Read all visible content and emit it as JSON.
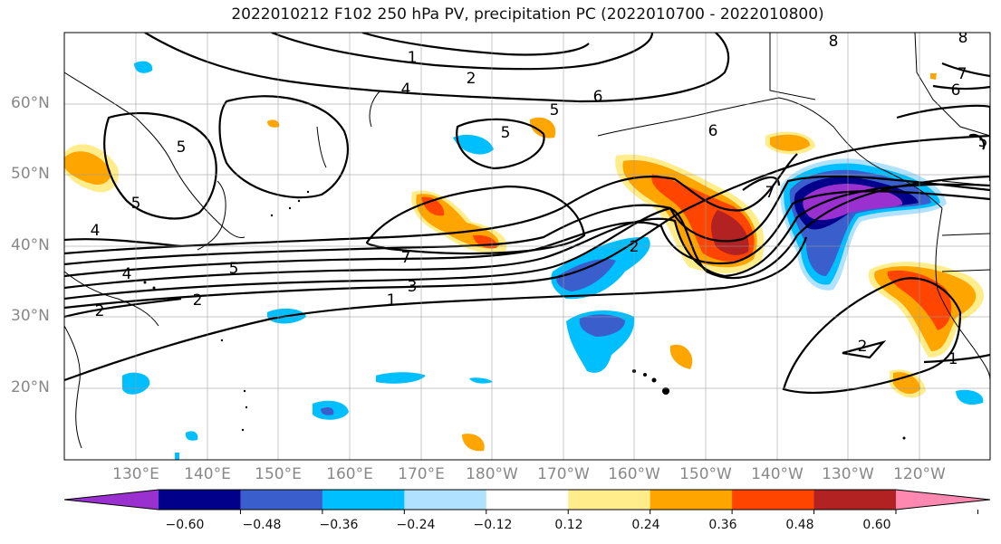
{
  "title": "2022010212 F102 250 hPa PV, precipitation PC (2022010700 - 2022010800)",
  "map": {
    "lat_labels": [
      "60°N",
      "50°N",
      "40°N",
      "30°N",
      "20°N"
    ],
    "lon_labels": [
      "130°E",
      "140°E",
      "150°E",
      "160°E",
      "170°E",
      "180°W",
      "170°W",
      "160°W",
      "150°W",
      "140°W",
      "130°W",
      "120°W"
    ],
    "contour_labels": [
      "1",
      "2",
      "4",
      "5",
      "6",
      "7",
      "5",
      "4",
      "5",
      "2",
      "5",
      "4",
      "7",
      "5",
      "3",
      "1",
      "2",
      "2",
      "2",
      "1",
      "6",
      "7",
      "8",
      "8",
      "6",
      "5"
    ]
  },
  "colorbar": {
    "ticks": [
      "−0.60",
      "−0.48",
      "−0.36",
      "−0.24",
      "−0.12",
      "0.12",
      "0.24",
      "0.36",
      "0.48",
      "0.60"
    ],
    "colors": [
      "#9b30d0",
      "#00008b",
      "#3a5fcd",
      "#00bfff",
      "#b0e2ff",
      "#ffffff",
      "#ffec8b",
      "#ffa500",
      "#ff4500",
      "#b22222",
      "#ff88b0"
    ]
  }
}
